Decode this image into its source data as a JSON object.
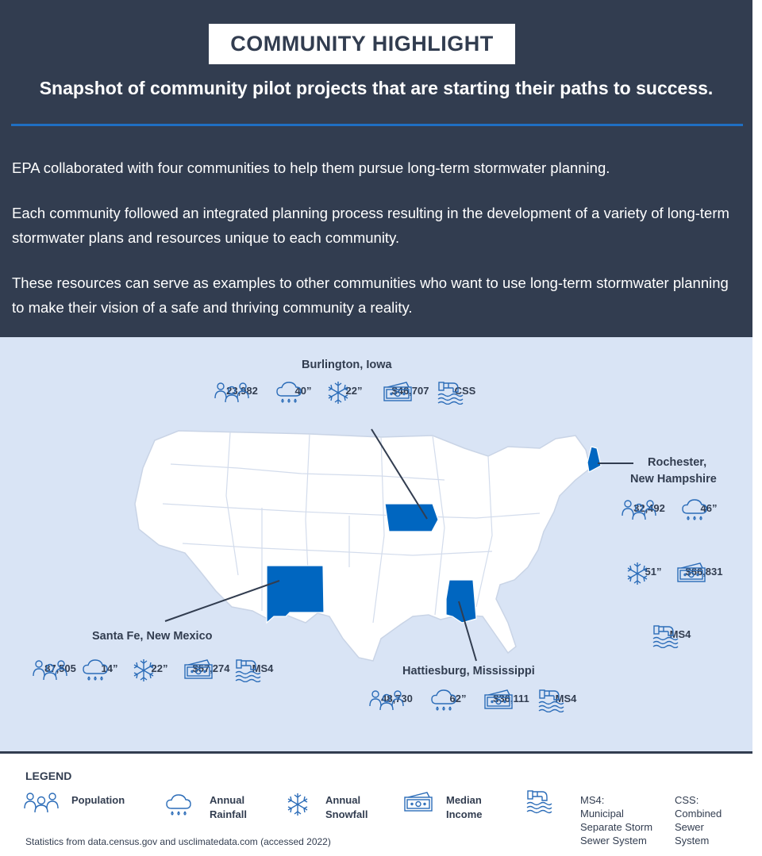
{
  "header": {
    "badge": "COMMUNITY HIGHLIGHT",
    "subtitle": "Snapshot of community pilot projects that are starting their paths to success.",
    "paragraphs": [
      "EPA collaborated with four communities to help them pursue long-term stormwater planning.",
      "Each community followed an integrated planning process resulting in the development of a variety of long-term stormwater plans and resources unique to each community.",
      "These resources can serve as examples to other communities who want to use long-term stormwater planning to make their vision of a safe and thriving community a reality."
    ]
  },
  "communities": {
    "burlington": {
      "name": "Burlington, Iowa",
      "population": "23,982",
      "rainfall": "40”",
      "snowfall": "22”",
      "income": "$46,707",
      "system": "CSS"
    },
    "rochester": {
      "name_line1": "Rochester,",
      "name_line2": "New Hampshire",
      "population": "32,492",
      "rainfall": "46”",
      "snowfall": "51”",
      "income": "$66,831",
      "system": "MS4"
    },
    "santafe": {
      "name": "Santa Fe, New Mexico",
      "population": "87,505",
      "rainfall": "14”",
      "snowfall": "22”",
      "income": "$57,274",
      "system": "MS4"
    },
    "hattiesburg": {
      "name": "Hattiesburg, Mississippi",
      "population": "48,730",
      "rainfall": "62”",
      "income": "$36,111",
      "system": "MS4"
    }
  },
  "legend": {
    "title": "LEGEND",
    "population": "Population",
    "rainfall_1": "Annual",
    "rainfall_2": "Rainfall",
    "snowfall_1": "Annual",
    "snowfall_2": "Snowfall",
    "income_1": "Median",
    "income_2": "Income",
    "ms4_1": "MS4:",
    "ms4_2": "Municipal",
    "ms4_3": "Separate Storm",
    "ms4_4": "Sewer System",
    "css_1": "CSS:",
    "css_2": "Combined",
    "css_3": "Sewer",
    "css_4": "System"
  },
  "source": "Statistics from data.census.gov and usclimatedata.com (accessed 2022)",
  "colors": {
    "navy": "#323d50",
    "highlight": "#0066c0",
    "map_bg": "#d9e4f5",
    "icon": "#2b6cb8"
  }
}
